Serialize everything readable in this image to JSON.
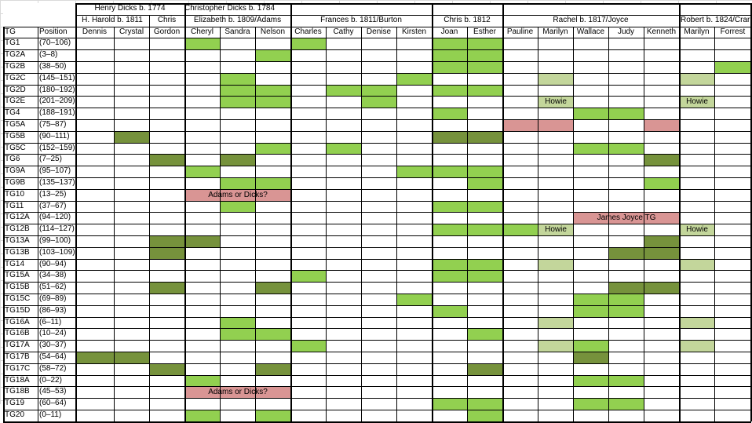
{
  "colors": {
    "light": "#92d050",
    "dark": "#76923c",
    "pale": "#c3d69b",
    "pink": "#d99594"
  },
  "groups": [
    {
      "label": "Henry Dicks b. 1774",
      "col_start": 2,
      "col_end": 4
    },
    {
      "label": "Christopher Dicks b. 1784",
      "col_start": 5,
      "col_end": 21
    }
  ],
  "families": [
    {
      "label": "H. Harold b. 1811",
      "col_start": 2,
      "col_end": 3
    },
    {
      "label": "Chris",
      "col_start": 4,
      "col_end": 4
    },
    {
      "label": "Elizabeth b. 1809/Adams",
      "col_start": 5,
      "col_end": 7
    },
    {
      "label": "Frances b. 1811/Burton",
      "col_start": 8,
      "col_end": 11
    },
    {
      "label": "Chris b. 1812",
      "col_start": 12,
      "col_end": 13
    },
    {
      "label": "Rachel b. 1817/Joyce",
      "col_start": 14,
      "col_end": 18
    },
    {
      "label": "Robert b. 1824/Crar",
      "col_start": 19,
      "col_end": 20
    }
  ],
  "columns": [
    "TG",
    "Position",
    "Dennis",
    "Crystal",
    "Gordon",
    "Cheryl",
    "Sandra",
    "Nelson",
    "Charles",
    "Cathy",
    "Denise",
    "Kirsten",
    "Joan",
    "Esther",
    "Pauline",
    "Marilyn",
    "Wallace",
    "Judy",
    "Kenneth",
    "Marilyn",
    "Forrest"
  ],
  "rows": [
    {
      "tg": "TG1",
      "pos": "(70–106)"
    },
    {
      "tg": "TG2A",
      "pos": "(3–8)"
    },
    {
      "tg": "TG2B",
      "pos": "(38–50)"
    },
    {
      "tg": "TG2C",
      "pos": "(145–151)"
    },
    {
      "tg": "TG2D",
      "pos": "(180–192)"
    },
    {
      "tg": "TG2E",
      "pos": "(201–209)"
    },
    {
      "tg": "TG4",
      "pos": "(188–191)"
    },
    {
      "tg": "TG5A",
      "pos": "(75–87)"
    },
    {
      "tg": "TG5B",
      "pos": "(90–111)"
    },
    {
      "tg": "TG5C",
      "pos": "(152–159)"
    },
    {
      "tg": "TG6",
      "pos": "(7–25)"
    },
    {
      "tg": "TG9A",
      "pos": "(95–107)"
    },
    {
      "tg": "TG9B",
      "pos": "(135–137)"
    },
    {
      "tg": "TG10",
      "pos": "(13–25)"
    },
    {
      "tg": "TG11",
      "pos": "(37–67)"
    },
    {
      "tg": "TG12A",
      "pos": "(94–120)"
    },
    {
      "tg": "TG12B",
      "pos": "(114–127)"
    },
    {
      "tg": "TG13A",
      "pos": "(99–100)"
    },
    {
      "tg": "TG13B",
      "pos": "(103–109)"
    },
    {
      "tg": "TG14",
      "pos": "(90–94)"
    },
    {
      "tg": "TG15A",
      "pos": "(34–38)"
    },
    {
      "tg": "TG15B",
      "pos": "(51–62)"
    },
    {
      "tg": "TG15C",
      "pos": "(69–89)"
    },
    {
      "tg": "TG15D",
      "pos": "(86–93)"
    },
    {
      "tg": "TG16A",
      "pos": "(6–11)"
    },
    {
      "tg": "TG16B",
      "pos": "(10–24)"
    },
    {
      "tg": "TG17A",
      "pos": "(30–37)"
    },
    {
      "tg": "TG17B",
      "pos": "(54–64)"
    },
    {
      "tg": "TG17C",
      "pos": "(58–72)"
    },
    {
      "tg": "TG18A",
      "pos": "(0–22)"
    },
    {
      "tg": "TG18B",
      "pos": "(45–53)"
    },
    {
      "tg": "TG19",
      "pos": "(60–64)"
    },
    {
      "tg": "TG20",
      "pos": "(0–11)"
    }
  ],
  "fills": [
    {
      "row": 0,
      "col": 5,
      "color": "light"
    },
    {
      "row": 0,
      "col": 8,
      "color": "light"
    },
    {
      "row": 0,
      "col": 12,
      "color": "light"
    },
    {
      "row": 0,
      "col": 13,
      "color": "light"
    },
    {
      "row": 1,
      "col": 7,
      "color": "light"
    },
    {
      "row": 1,
      "col": 12,
      "color": "light"
    },
    {
      "row": 1,
      "col": 13,
      "color": "light"
    },
    {
      "row": 2,
      "col": 12,
      "color": "light"
    },
    {
      "row": 2,
      "col": 13,
      "color": "light"
    },
    {
      "row": 2,
      "col": 20,
      "color": "light"
    },
    {
      "row": 3,
      "col": 6,
      "color": "light"
    },
    {
      "row": 3,
      "col": 11,
      "color": "light"
    },
    {
      "row": 3,
      "col": 15,
      "color": "pale"
    },
    {
      "row": 3,
      "col": 19,
      "color": "pale"
    },
    {
      "row": 4,
      "col": 6,
      "color": "light"
    },
    {
      "row": 4,
      "col": 7,
      "color": "light"
    },
    {
      "row": 4,
      "col": 9,
      "color": "light"
    },
    {
      "row": 4,
      "col": 10,
      "color": "light"
    },
    {
      "row": 4,
      "col": 12,
      "color": "light"
    },
    {
      "row": 4,
      "col": 13,
      "color": "light"
    },
    {
      "row": 5,
      "col": 6,
      "color": "light"
    },
    {
      "row": 5,
      "col": 7,
      "color": "light"
    },
    {
      "row": 5,
      "col": 10,
      "color": "light"
    },
    {
      "row": 5,
      "col": 15,
      "color": "pale",
      "text": "Howie"
    },
    {
      "row": 5,
      "col": 19,
      "color": "pale",
      "text": "Howie"
    },
    {
      "row": 6,
      "col": 12,
      "color": "light"
    },
    {
      "row": 6,
      "col": 16,
      "color": "light"
    },
    {
      "row": 6,
      "col": 17,
      "color": "light"
    },
    {
      "row": 7,
      "col": 14,
      "color": "pink"
    },
    {
      "row": 7,
      "col": 15,
      "color": "pink"
    },
    {
      "row": 7,
      "col": 18,
      "color": "pink"
    },
    {
      "row": 8,
      "col": 3,
      "color": "dark"
    },
    {
      "row": 8,
      "col": 12,
      "color": "dark"
    },
    {
      "row": 8,
      "col": 13,
      "color": "dark"
    },
    {
      "row": 9,
      "col": 7,
      "color": "light"
    },
    {
      "row": 9,
      "col": 9,
      "color": "light"
    },
    {
      "row": 9,
      "col": 16,
      "color": "light"
    },
    {
      "row": 9,
      "col": 17,
      "color": "light"
    },
    {
      "row": 10,
      "col": 4,
      "color": "dark"
    },
    {
      "row": 10,
      "col": 6,
      "color": "dark"
    },
    {
      "row": 10,
      "col": 18,
      "color": "dark"
    },
    {
      "row": 11,
      "col": 5,
      "color": "light"
    },
    {
      "row": 11,
      "col": 11,
      "color": "light"
    },
    {
      "row": 11,
      "col": 12,
      "color": "light"
    },
    {
      "row": 11,
      "col": 13,
      "color": "light"
    },
    {
      "row": 12,
      "col": 6,
      "color": "light"
    },
    {
      "row": 12,
      "col": 7,
      "color": "light"
    },
    {
      "row": 12,
      "col": 13,
      "color": "light"
    },
    {
      "row": 12,
      "col": 18,
      "color": "light"
    },
    {
      "row": 13,
      "col": 5,
      "span": 3,
      "color": "pink",
      "text": "Adams or Dicks?"
    },
    {
      "row": 14,
      "col": 6,
      "color": "light"
    },
    {
      "row": 14,
      "col": 12,
      "color": "light"
    },
    {
      "row": 14,
      "col": 13,
      "color": "light"
    },
    {
      "row": 15,
      "col": 16,
      "span": 3,
      "color": "pink",
      "text": "James Joyce TG"
    },
    {
      "row": 16,
      "col": 12,
      "color": "light"
    },
    {
      "row": 16,
      "col": 13,
      "color": "light"
    },
    {
      "row": 16,
      "col": 14,
      "color": "light"
    },
    {
      "row": 16,
      "col": 15,
      "color": "pale",
      "text": "Howie"
    },
    {
      "row": 16,
      "col": 19,
      "color": "pale",
      "text": "Howie"
    },
    {
      "row": 17,
      "col": 4,
      "color": "dark"
    },
    {
      "row": 17,
      "col": 5,
      "color": "dark"
    },
    {
      "row": 17,
      "col": 18,
      "color": "dark"
    },
    {
      "row": 18,
      "col": 4,
      "color": "dark"
    },
    {
      "row": 18,
      "col": 17,
      "color": "dark"
    },
    {
      "row": 18,
      "col": 18,
      "color": "dark"
    },
    {
      "row": 19,
      "col": 12,
      "color": "light"
    },
    {
      "row": 19,
      "col": 13,
      "color": "light"
    },
    {
      "row": 19,
      "col": 15,
      "color": "pale"
    },
    {
      "row": 19,
      "col": 19,
      "color": "pale"
    },
    {
      "row": 20,
      "col": 8,
      "color": "light"
    },
    {
      "row": 20,
      "col": 12,
      "color": "light"
    },
    {
      "row": 20,
      "col": 13,
      "color": "light"
    },
    {
      "row": 21,
      "col": 4,
      "color": "dark"
    },
    {
      "row": 21,
      "col": 7,
      "color": "dark"
    },
    {
      "row": 21,
      "col": 17,
      "color": "dark"
    },
    {
      "row": 21,
      "col": 18,
      "color": "dark"
    },
    {
      "row": 22,
      "col": 11,
      "color": "light"
    },
    {
      "row": 22,
      "col": 16,
      "color": "light"
    },
    {
      "row": 22,
      "col": 17,
      "color": "light"
    },
    {
      "row": 23,
      "col": 12,
      "color": "light"
    },
    {
      "row": 23,
      "col": 16,
      "color": "light"
    },
    {
      "row": 23,
      "col": 17,
      "color": "light"
    },
    {
      "row": 24,
      "col": 6,
      "color": "light"
    },
    {
      "row": 24,
      "col": 15,
      "color": "pale"
    },
    {
      "row": 24,
      "col": 19,
      "color": "pale"
    },
    {
      "row": 25,
      "col": 6,
      "color": "light"
    },
    {
      "row": 25,
      "col": 7,
      "color": "light"
    },
    {
      "row": 25,
      "col": 13,
      "color": "light"
    },
    {
      "row": 26,
      "col": 8,
      "color": "light"
    },
    {
      "row": 26,
      "col": 15,
      "color": "pale"
    },
    {
      "row": 26,
      "col": 16,
      "color": "light"
    },
    {
      "row": 26,
      "col": 19,
      "color": "pale"
    },
    {
      "row": 27,
      "col": 2,
      "color": "dark"
    },
    {
      "row": 27,
      "col": 3,
      "color": "dark"
    },
    {
      "row": 27,
      "col": 16,
      "color": "dark"
    },
    {
      "row": 28,
      "col": 4,
      "color": "dark"
    },
    {
      "row": 28,
      "col": 7,
      "color": "dark"
    },
    {
      "row": 28,
      "col": 13,
      "color": "dark"
    },
    {
      "row": 29,
      "col": 5,
      "color": "light"
    },
    {
      "row": 29,
      "col": 16,
      "color": "light"
    },
    {
      "row": 29,
      "col": 17,
      "color": "light"
    },
    {
      "row": 30,
      "col": 5,
      "span": 3,
      "color": "pink",
      "text": "Adams or Dicks?"
    },
    {
      "row": 31,
      "col": 12,
      "color": "light"
    },
    {
      "row": 31,
      "col": 13,
      "color": "light"
    },
    {
      "row": 31,
      "col": 16,
      "color": "light"
    },
    {
      "row": 31,
      "col": 17,
      "color": "light"
    },
    {
      "row": 32,
      "col": 5,
      "color": "light"
    },
    {
      "row": 32,
      "col": 7,
      "color": "light"
    },
    {
      "row": 32,
      "col": 13,
      "color": "light"
    }
  ]
}
